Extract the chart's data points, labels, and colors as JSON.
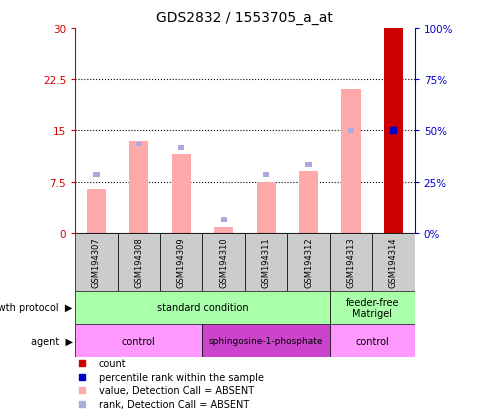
{
  "title": "GDS2832 / 1553705_a_at",
  "samples": [
    "GSM194307",
    "GSM194308",
    "GSM194309",
    "GSM194310",
    "GSM194311",
    "GSM194312",
    "GSM194313",
    "GSM194314"
  ],
  "bar_values_pink": [
    6.5,
    13.5,
    11.5,
    0.8,
    7.5,
    9.0,
    21.0,
    29.5
  ],
  "bar_values_blue_y": [
    8.5,
    13.0,
    12.5,
    2.0,
    8.5,
    10.0,
    15.0,
    16.0
  ],
  "count_bar_idx": 7,
  "count_bar_val": 30.0,
  "percentile_rank_idx": 7,
  "percentile_rank_val": 50.0,
  "ylim_left": [
    0,
    30
  ],
  "ylim_right": [
    0,
    100
  ],
  "yticks_left": [
    0,
    7.5,
    15,
    22.5,
    30
  ],
  "yticks_right": [
    0,
    25,
    50,
    75,
    100
  ],
  "ytick_labels_left": [
    "0",
    "7.5",
    "15",
    "22.5",
    "30"
  ],
  "ytick_labels_right": [
    "0%",
    "25%",
    "50%",
    "75%",
    "100%"
  ],
  "growth_protocol_groups": [
    {
      "label": "standard condition",
      "start": 0,
      "end": 6,
      "color": "#aaffaa"
    },
    {
      "label": "feeder-free\nMatrigel",
      "start": 6,
      "end": 8,
      "color": "#aaffaa"
    }
  ],
  "agent_groups": [
    {
      "label": "control",
      "start": 0,
      "end": 3,
      "color": "#ff99ff"
    },
    {
      "label": "sphingosine-1-phosphate",
      "start": 3,
      "end": 6,
      "color": "#cc44cc"
    },
    {
      "label": "control",
      "start": 6,
      "end": 8,
      "color": "#ff99ff"
    }
  ],
  "color_pink_bar": "#ffaaaa",
  "color_blue_bar": "#aaaadd",
  "color_red_bar": "#cc0000",
  "color_blue_dot": "#0000cc",
  "axis_left_color": "#cc0000",
  "axis_right_color": "#0000cc",
  "background_color": "#ffffff",
  "sample_box_color": "#cccccc",
  "legend_items": [
    {
      "color": "#cc0000",
      "label": "count"
    },
    {
      "color": "#0000cc",
      "label": "percentile rank within the sample"
    },
    {
      "color": "#ffaaaa",
      "label": "value, Detection Call = ABSENT"
    },
    {
      "color": "#aaaadd",
      "label": "rank, Detection Call = ABSENT"
    }
  ]
}
